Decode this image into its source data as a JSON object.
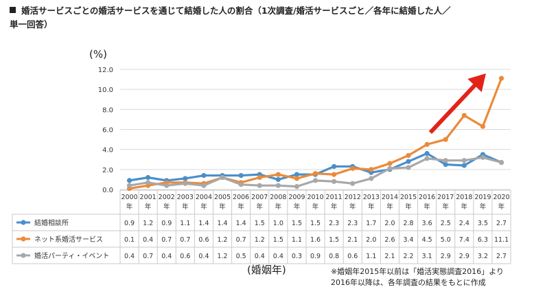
{
  "title_line1": "婚活サービスごとの婚活サービスを通じて結婚した人の割合（1次調査/婚活サービスごと／各年に結婚した人／",
  "title_line2": "単一回答）",
  "y_unit": "(%)",
  "x_unit": "(婚姻年)",
  "note_line1": "※婚姻年2015年以前は「婚活実態調査2016」より",
  "note_line2": "2016年以降は、各年調査の結果をもとに作成",
  "colors": {
    "blue": "#4a8fcb",
    "orange": "#ea8a3a",
    "gray": "#a8a8a8",
    "arrow": "#e2231a",
    "grid": "#d9d9d9"
  },
  "chart_data": {
    "type": "line",
    "categories": [
      "2000",
      "2001",
      "2002",
      "2003",
      "2004",
      "2005",
      "2006",
      "2007",
      "2008",
      "2009",
      "2010",
      "2011",
      "2012",
      "2013",
      "2014",
      "2015",
      "2016",
      "2017",
      "2018",
      "2019",
      "2020"
    ],
    "category_suffix": "年",
    "ylim": [
      0,
      12
    ],
    "yticks": [
      "0.0",
      "2.0",
      "4.0",
      "6.0",
      "8.0",
      "10.0",
      "12.0"
    ],
    "grid": true,
    "series": [
      {
        "name": "結婚相談所",
        "color": "#4a8fcb",
        "values": [
          "0.9",
          "1.2",
          "0.9",
          "1.1",
          "1.4",
          "1.4",
          "1.4",
          "1.5",
          "1.0",
          "1.5",
          "1.5",
          "2.3",
          "2.3",
          "1.7",
          "2.0",
          "2.8",
          "3.6",
          "2.5",
          "2.4",
          "3.5",
          "2.7"
        ]
      },
      {
        "name": "ネット系婚活サービス",
        "color": "#ea8a3a",
        "values": [
          "0.1",
          "0.4",
          "0.7",
          "0.7",
          "0.6",
          "1.2",
          "0.7",
          "1.2",
          "1.5",
          "1.1",
          "1.6",
          "1.5",
          "2.1",
          "2.0",
          "2.6",
          "3.4",
          "4.5",
          "5.0",
          "7.4",
          "6.3",
          "11.1"
        ]
      },
      {
        "name": "婚活パーティ・イベント",
        "color": "#a8a8a8",
        "values": [
          "0.4",
          "0.7",
          "0.4",
          "0.6",
          "0.4",
          "1.2",
          "0.5",
          "0.4",
          "0.4",
          "0.3",
          "0.9",
          "0.8",
          "0.6",
          "1.1",
          "2.1",
          "2.2",
          "3.1",
          "2.9",
          "2.9",
          "3.2",
          "2.7"
        ]
      }
    ]
  }
}
